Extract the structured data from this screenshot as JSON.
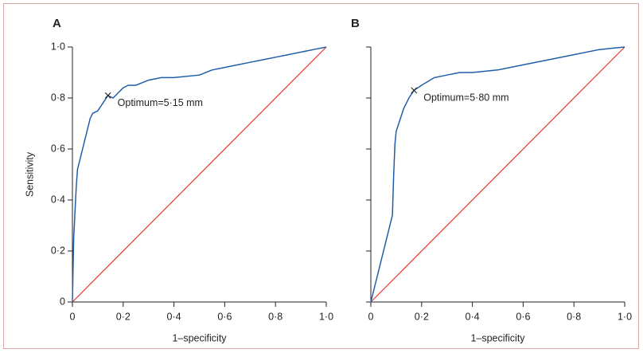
{
  "chart_data": [
    {
      "type": "line",
      "label": "A",
      "xlabel": "1–specificity",
      "ylabel": "Sensitivity",
      "x": [
        0,
        0.005,
        0.01,
        0.015,
        0.02,
        0.03,
        0.04,
        0.05,
        0.06,
        0.07,
        0.08,
        0.1,
        0.12,
        0.14,
        0.16,
        0.18,
        0.2,
        0.22,
        0.25,
        0.3,
        0.35,
        0.4,
        0.5,
        0.55,
        0.6,
        0.65,
        0.7,
        0.75,
        0.8,
        0.85,
        0.9,
        0.95,
        1
      ],
      "values": [
        0,
        0.25,
        0.35,
        0.45,
        0.52,
        0.56,
        0.6,
        0.64,
        0.68,
        0.72,
        0.74,
        0.75,
        0.78,
        0.81,
        0.8,
        0.82,
        0.84,
        0.85,
        0.85,
        0.87,
        0.88,
        0.88,
        0.89,
        0.91,
        0.92,
        0.93,
        0.94,
        0.95,
        0.96,
        0.97,
        0.98,
        0.99,
        1
      ],
      "color": "#1f5fa8",
      "reference_line": {
        "x": [
          0,
          1
        ],
        "values": [
          0,
          1
        ],
        "color": "#e5392e"
      },
      "annotations": [
        {
          "text": "Optimum=5·15 mm",
          "x": 0.14,
          "y": 0.81
        }
      ],
      "xlim": [
        0,
        1
      ],
      "ylim": [
        0,
        1
      ],
      "xticks": [
        0,
        {
          "value": 0.2,
          "label": "0·2"
        },
        {
          "value": 0.4,
          "label": "0·4"
        },
        {
          "value": 0.6,
          "label": "0·6"
        },
        {
          "value": 0.8,
          "label": "0·8"
        },
        {
          "value": 1,
          "label": "1·0"
        }
      ],
      "yticks": [
        0,
        {
          "value": 0.2,
          "label": "0·2"
        },
        {
          "value": 0.4,
          "label": "0·4"
        },
        {
          "value": 0.6,
          "label": "0·6"
        },
        {
          "value": 0.8,
          "label": "0·8"
        },
        {
          "value": 1,
          "label": "1·0"
        }
      ],
      "show_ytick_labels": true
    },
    {
      "type": "line",
      "label": "B",
      "xlabel": "1–specificity",
      "x": [
        0,
        0.085,
        0.09,
        0.095,
        0.1,
        0.11,
        0.12,
        0.13,
        0.14,
        0.15,
        0.17,
        0.2,
        0.25,
        0.3,
        0.35,
        0.4,
        0.5,
        0.6,
        0.7,
        0.8,
        0.9,
        1
      ],
      "values": [
        0,
        0.34,
        0.5,
        0.62,
        0.67,
        0.7,
        0.73,
        0.76,
        0.78,
        0.8,
        0.83,
        0.85,
        0.88,
        0.89,
        0.9,
        0.9,
        0.91,
        0.93,
        0.95,
        0.97,
        0.99,
        1
      ],
      "color": "#1f5fa8",
      "reference_line": {
        "x": [
          0,
          1
        ],
        "values": [
          0,
          1
        ],
        "color": "#e5392e"
      },
      "annotations": [
        {
          "text": "Optimum=5·80 mm",
          "x": 0.17,
          "y": 0.83
        }
      ],
      "xlim": [
        0,
        1
      ],
      "ylim": [
        0,
        1
      ],
      "xticks": [
        0,
        {
          "value": 0.2,
          "label": "0·2"
        },
        {
          "value": 0.4,
          "label": "0·4"
        },
        {
          "value": 0.6,
          "label": "0·6"
        },
        {
          "value": 0.8,
          "label": "0·8"
        },
        {
          "value": 1,
          "label": "1·0"
        }
      ],
      "yticks": [
        0,
        0.2,
        0.4,
        0.6,
        0.8,
        1
      ],
      "show_ytick_labels": false
    }
  ]
}
